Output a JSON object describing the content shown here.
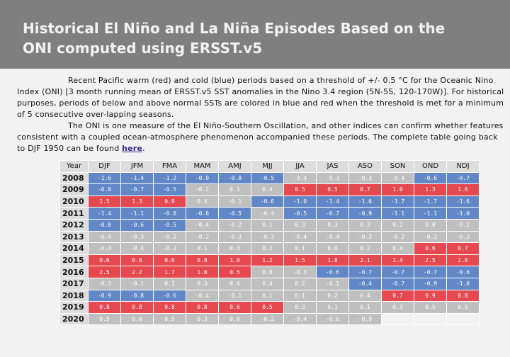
{
  "title_lines": [
    "Historical El Niño and La Niña Episodes Based on the",
    "ONI computed using ERSST.v5"
  ],
  "description": {
    "para1": "Recent Pacific warm (red) and cold (blue) periods based on a threshold of +/- 0.5 °C for the Oceanic Nino Index (ONI) [3 month running mean of ERSST.v5 SST anomalies in the Nino 3.4 region (5N-5S, 120-170W)]. For historical purposes, periods of below and above normal SSTs are colored in blue and red when the threshold is met for a minimum of 5 consecutive over-lapping seasons.",
    "para2": "The ONI is one measure of the El Niño-Southern Oscillation, and other indices can confirm whether features consistent with a coupled ocean-atmosphere phenomenon accompanied these periods. The complete table going back to DJF 1950 can be found ",
    "link": "here",
    "tail": "."
  },
  "table": {
    "headers": [
      "Year",
      "DJF",
      "JFM",
      "FMA",
      "MAM",
      "AMJ",
      "MJJ",
      "JJA",
      "JAS",
      "ASO",
      "SON",
      "OND",
      "NDJ"
    ],
    "rows": [
      {
        "year": "2008",
        "cells": [
          [
            "-1.6",
            "c"
          ],
          [
            "-1.4",
            "c"
          ],
          [
            "-1.2",
            "c"
          ],
          [
            "-0.9",
            "c"
          ],
          [
            "-0.8",
            "c"
          ],
          [
            "-0.5",
            "c"
          ],
          [
            "-0.4",
            "n"
          ],
          [
            "-0.3",
            "n"
          ],
          [
            "-0.3",
            "n"
          ],
          [
            "-0.4",
            "n"
          ],
          [
            "-0.6",
            "c"
          ],
          [
            "-0.7",
            "c"
          ]
        ]
      },
      {
        "year": "2009",
        "cells": [
          [
            "-0.8",
            "c"
          ],
          [
            "-0.7",
            "c"
          ],
          [
            "-0.5",
            "c"
          ],
          [
            "-0.2",
            "n"
          ],
          [
            "0.1",
            "n"
          ],
          [
            "0.4",
            "n"
          ],
          [
            "0.5",
            "h"
          ],
          [
            "0.5",
            "h"
          ],
          [
            "0.7",
            "h"
          ],
          [
            "1.0",
            "h"
          ],
          [
            "1.3",
            "h"
          ],
          [
            "1.6",
            "h"
          ]
        ]
      },
      {
        "year": "2010",
        "cells": [
          [
            "1.5",
            "h"
          ],
          [
            "1.3",
            "h"
          ],
          [
            "0.9",
            "h"
          ],
          [
            "0.4",
            "n"
          ],
          [
            "-0.1",
            "n"
          ],
          [
            "-0.6",
            "c"
          ],
          [
            "-1.0",
            "c"
          ],
          [
            "-1.4",
            "c"
          ],
          [
            "-1.6",
            "c"
          ],
          [
            "-1.7",
            "c"
          ],
          [
            "-1.7",
            "c"
          ],
          [
            "-1.6",
            "c"
          ]
        ]
      },
      {
        "year": "2011",
        "cells": [
          [
            "-1.4",
            "c"
          ],
          [
            "-1.1",
            "c"
          ],
          [
            "-0.8",
            "c"
          ],
          [
            "-0.6",
            "c"
          ],
          [
            "-0.5",
            "c"
          ],
          [
            "-0.4",
            "n"
          ],
          [
            "-0.5",
            "c"
          ],
          [
            "-0.7",
            "c"
          ],
          [
            "-0.9",
            "c"
          ],
          [
            "-1.1",
            "c"
          ],
          [
            "-1.1",
            "c"
          ],
          [
            "-1.0",
            "c"
          ]
        ]
      },
      {
        "year": "2012",
        "cells": [
          [
            "-0.8",
            "c"
          ],
          [
            "-0.6",
            "c"
          ],
          [
            "-0.5",
            "c"
          ],
          [
            "-0.4",
            "n"
          ],
          [
            "-0.2",
            "n"
          ],
          [
            "0.1",
            "n"
          ],
          [
            "0.3",
            "n"
          ],
          [
            "0.3",
            "n"
          ],
          [
            "0.3",
            "n"
          ],
          [
            "0.2",
            "n"
          ],
          [
            "0.0",
            "n"
          ],
          [
            "-0.2",
            "n"
          ]
        ]
      },
      {
        "year": "2013",
        "cells": [
          [
            "-0.4",
            "n"
          ],
          [
            "-0.3",
            "n"
          ],
          [
            "-0.2",
            "n"
          ],
          [
            "-0.2",
            "n"
          ],
          [
            "-0.3",
            "n"
          ],
          [
            "-0.3",
            "n"
          ],
          [
            "-0.4",
            "n"
          ],
          [
            "-0.4",
            "n"
          ],
          [
            "-0.3",
            "n"
          ],
          [
            "-0.2",
            "n"
          ],
          [
            "-0.2",
            "n"
          ],
          [
            "-0.3",
            "n"
          ]
        ]
      },
      {
        "year": "2014",
        "cells": [
          [
            "-0.4",
            "n"
          ],
          [
            "-0.4",
            "n"
          ],
          [
            "-0.2",
            "n"
          ],
          [
            "0.1",
            "n"
          ],
          [
            "0.3",
            "n"
          ],
          [
            "0.2",
            "n"
          ],
          [
            "0.1",
            "n"
          ],
          [
            "0.0",
            "n"
          ],
          [
            "0.2",
            "n"
          ],
          [
            "0.4",
            "n"
          ],
          [
            "0.6",
            "h"
          ],
          [
            "0.7",
            "h"
          ]
        ]
      },
      {
        "year": "2015",
        "cells": [
          [
            "0.6",
            "h"
          ],
          [
            "0.6",
            "h"
          ],
          [
            "0.6",
            "h"
          ],
          [
            "0.8",
            "h"
          ],
          [
            "1.0",
            "h"
          ],
          [
            "1.2",
            "h"
          ],
          [
            "1.5",
            "h"
          ],
          [
            "1.8",
            "h"
          ],
          [
            "2.1",
            "h"
          ],
          [
            "2.4",
            "h"
          ],
          [
            "2.5",
            "h"
          ],
          [
            "2.6",
            "h"
          ]
        ]
      },
      {
        "year": "2016",
        "cells": [
          [
            "2.5",
            "h"
          ],
          [
            "2.2",
            "h"
          ],
          [
            "1.7",
            "h"
          ],
          [
            "1.0",
            "h"
          ],
          [
            "0.5",
            "h"
          ],
          [
            "0.0",
            "n"
          ],
          [
            "-0.3",
            "n"
          ],
          [
            "-0.6",
            "c"
          ],
          [
            "-0.7",
            "c"
          ],
          [
            "-0.7",
            "c"
          ],
          [
            "-0.7",
            "c"
          ],
          [
            "-0.6",
            "c"
          ]
        ]
      },
      {
        "year": "2017",
        "cells": [
          [
            "-0.3",
            "n"
          ],
          [
            "-0.1",
            "n"
          ],
          [
            "0.1",
            "n"
          ],
          [
            "0.3",
            "n"
          ],
          [
            "0.4",
            "n"
          ],
          [
            "0.4",
            "n"
          ],
          [
            "0.2",
            "n"
          ],
          [
            "-0.1",
            "n"
          ],
          [
            "-0.4",
            "c"
          ],
          [
            "-0.7",
            "c"
          ],
          [
            "-0.9",
            "c"
          ],
          [
            "-1.0",
            "c"
          ]
        ]
      },
      {
        "year": "2018",
        "cells": [
          [
            "-0.9",
            "c"
          ],
          [
            "-0.8",
            "c"
          ],
          [
            "-0.6",
            "c"
          ],
          [
            "-0.4",
            "n"
          ],
          [
            "-0.1",
            "n"
          ],
          [
            "0.1",
            "n"
          ],
          [
            "0.1",
            "n"
          ],
          [
            "0.2",
            "n"
          ],
          [
            "0.4",
            "n"
          ],
          [
            "0.7",
            "h"
          ],
          [
            "0.9",
            "h"
          ],
          [
            "0.8",
            "h"
          ]
        ]
      },
      {
        "year": "2019",
        "cells": [
          [
            "0.8",
            "h"
          ],
          [
            "0.8",
            "h"
          ],
          [
            "0.8",
            "h"
          ],
          [
            "0.8",
            "h"
          ],
          [
            "0.6",
            "h"
          ],
          [
            "0.5",
            "h"
          ],
          [
            "0.3",
            "n"
          ],
          [
            "0.1",
            "n"
          ],
          [
            "0.1",
            "n"
          ],
          [
            "0.3",
            "n"
          ],
          [
            "0.5",
            "n"
          ],
          [
            "0.5",
            "n"
          ]
        ]
      },
      {
        "year": "2020",
        "cells": [
          [
            "0.5",
            "n"
          ],
          [
            "0.6",
            "n"
          ],
          [
            "0.5",
            "n"
          ],
          [
            "0.3",
            "n"
          ],
          [
            "0.0",
            "n"
          ],
          [
            "-0.2",
            "n"
          ],
          [
            "-0.4",
            "n"
          ],
          [
            "-0.6",
            "n"
          ],
          [
            "-0.9",
            "n"
          ],
          [
            "",
            ""
          ],
          [
            "",
            ""
          ],
          [
            "",
            ""
          ]
        ]
      }
    ]
  }
}
